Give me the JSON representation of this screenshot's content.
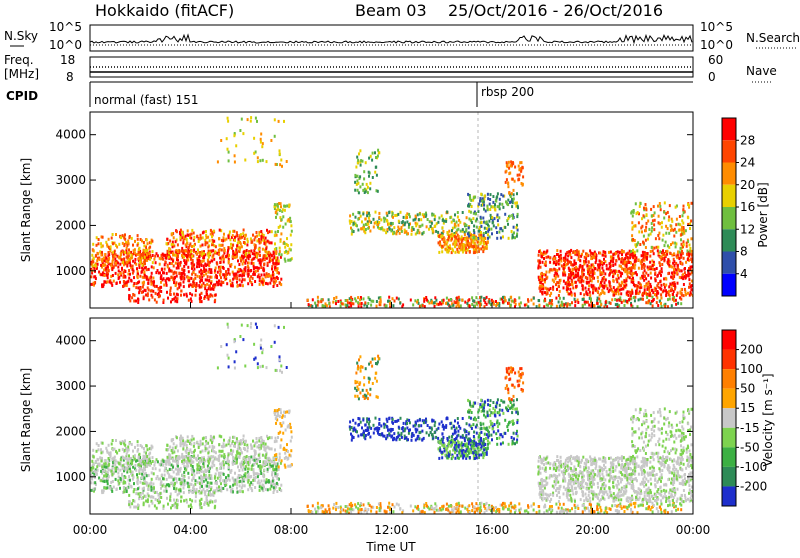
{
  "header": {
    "station": "Hokkaido (fitACF)",
    "beam": "Beam 03",
    "date_range": "25/Oct/2016 - 26/Oct/2016"
  },
  "top_panel": {
    "left_label": "N.Sky",
    "left_ticks": [
      "10^5",
      "10^0"
    ],
    "right_label": "N.Search",
    "right_ticks": [
      "10^5",
      "10^0"
    ]
  },
  "freq_panel": {
    "left_label_1": "Freq.",
    "left_label_2": "[MHz]",
    "left_ticks": [
      "18",
      "8"
    ],
    "right_label": "Nave",
    "right_ticks": [
      "60",
      "0"
    ]
  },
  "cpid_panel": {
    "label": "CPID",
    "programs": [
      "normal (fast) 151",
      "rbsp 200"
    ]
  },
  "chart_data": [
    {
      "type": "heatmap",
      "name": "Power",
      "ylabel": "Slant Range [km]",
      "yticks": [
        "1000",
        "2000",
        "3000",
        "4000"
      ],
      "ylim": [
        180,
        4500
      ],
      "colorbar_label": "Power [dB]",
      "colorbar_ticks": [
        "4",
        "8",
        "12",
        "16",
        "20",
        "24",
        "28"
      ],
      "colorbar_colors": [
        "#0000ff",
        "#2f4faa",
        "#2e8b57",
        "#6fbf3f",
        "#e8d000",
        "#ff8c00",
        "#ff4500",
        "#ff0000"
      ]
    },
    {
      "type": "heatmap",
      "name": "Velocity",
      "ylabel": "Slant Range [km]",
      "yticks": [
        "1000",
        "2000",
        "3000",
        "4000"
      ],
      "ylim": [
        180,
        4500
      ],
      "xlabel": "Time UT",
      "xticks": [
        "00:00",
        "04:00",
        "08:00",
        "12:00",
        "16:00",
        "20:00",
        "00:00"
      ],
      "colorbar_label": "Velocity [m s⁻¹]",
      "colorbar_ticks": [
        "200",
        "100",
        "50",
        "15",
        "-15",
        "-50",
        "-100",
        "-200"
      ],
      "colorbar_colors": [
        "#1e2fcc",
        "#2e8b57",
        "#3cb043",
        "#7dd34f",
        "#c8c8c8",
        "#ffa500",
        "#ff7f00",
        "#ff3300",
        "#ff0000"
      ]
    }
  ]
}
